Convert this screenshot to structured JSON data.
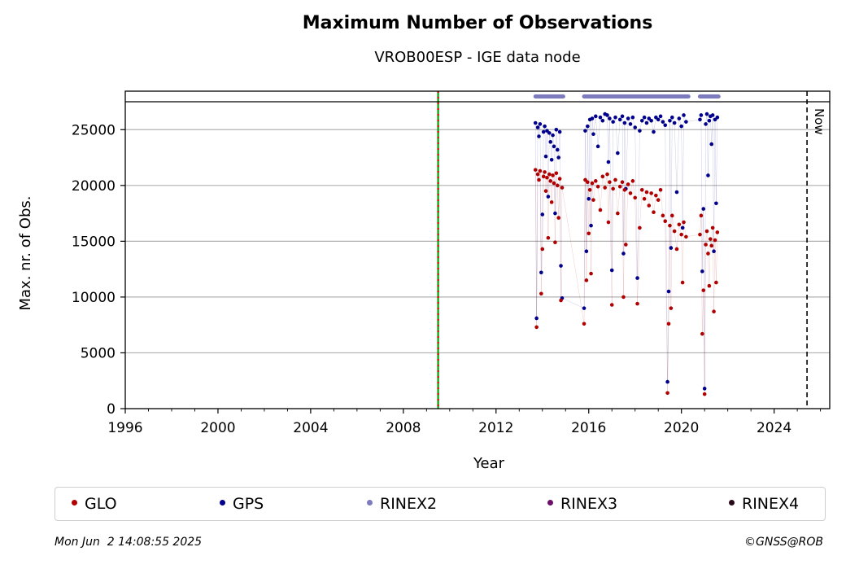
{
  "chart_data": {
    "type": "scatter",
    "title": "Maximum Number of Observations",
    "subtitle": "VROB00ESP - IGE data node",
    "xlabel": "Year",
    "ylabel": "Max. nr. of Obs.",
    "xlim": [
      1996,
      2026.4
    ],
    "ylim": [
      0,
      27500
    ],
    "x_ticks": [
      "1996",
      "2000",
      "2004",
      "2008",
      "2012",
      "2016",
      "2020",
      "2024"
    ],
    "y_ticks": [
      "0",
      "5000",
      "10000",
      "15000",
      "20000",
      "25000"
    ],
    "grid": "horizontal",
    "vertical_markers": [
      {
        "x": 2009.5,
        "style": "green-red dashed",
        "label": ""
      },
      {
        "x": 2025.42,
        "style": "black dashed",
        "label": "Now"
      }
    ],
    "rinex_bands": [
      {
        "name": "RINEX2",
        "segments": [
          [
            2013.7,
            2014.9
          ],
          [
            2015.8,
            2020.3
          ],
          [
            2020.8,
            2021.6
          ]
        ]
      }
    ],
    "series": [
      {
        "name": "GLO",
        "color": "#b00000",
        "points": [
          [
            2013.7,
            21400
          ],
          [
            2013.75,
            7300
          ],
          [
            2013.8,
            21000
          ],
          [
            2013.85,
            20500
          ],
          [
            2013.9,
            21300
          ],
          [
            2013.95,
            10300
          ],
          [
            2014.0,
            14300
          ],
          [
            2014.05,
            20800
          ],
          [
            2014.1,
            21200
          ],
          [
            2014.15,
            19500
          ],
          [
            2014.2,
            20700
          ],
          [
            2014.25,
            15300
          ],
          [
            2014.3,
            21000
          ],
          [
            2014.35,
            20400
          ],
          [
            2014.4,
            18500
          ],
          [
            2014.45,
            20900
          ],
          [
            2014.5,
            20200
          ],
          [
            2014.55,
            14900
          ],
          [
            2014.6,
            21100
          ],
          [
            2014.65,
            20000
          ],
          [
            2014.7,
            17100
          ],
          [
            2014.75,
            20600
          ],
          [
            2014.8,
            9700
          ],
          [
            2014.85,
            19800
          ],
          [
            2015.8,
            7600
          ],
          [
            2015.85,
            20500
          ],
          [
            2015.9,
            11500
          ],
          [
            2015.95,
            20300
          ],
          [
            2016.0,
            15700
          ],
          [
            2016.05,
            19600
          ],
          [
            2016.1,
            12100
          ],
          [
            2016.15,
            20200
          ],
          [
            2016.2,
            18700
          ],
          [
            2016.3,
            20400
          ],
          [
            2016.4,
            19900
          ],
          [
            2016.5,
            17800
          ],
          [
            2016.6,
            20800
          ],
          [
            2016.7,
            19800
          ],
          [
            2016.8,
            21000
          ],
          [
            2016.85,
            16700
          ],
          [
            2016.9,
            20300
          ],
          [
            2017.0,
            9300
          ],
          [
            2017.05,
            19700
          ],
          [
            2017.15,
            20500
          ],
          [
            2017.25,
            17500
          ],
          [
            2017.35,
            19900
          ],
          [
            2017.45,
            20300
          ],
          [
            2017.5,
            10000
          ],
          [
            2017.55,
            19600
          ],
          [
            2017.6,
            14700
          ],
          [
            2017.7,
            20100
          ],
          [
            2017.8,
            19300
          ],
          [
            2017.9,
            20400
          ],
          [
            2018.0,
            18900
          ],
          [
            2018.1,
            9400
          ],
          [
            2018.2,
            16200
          ],
          [
            2018.3,
            19600
          ],
          [
            2018.4,
            18800
          ],
          [
            2018.5,
            19400
          ],
          [
            2018.6,
            18200
          ],
          [
            2018.7,
            19300
          ],
          [
            2018.8,
            17600
          ],
          [
            2018.9,
            19100
          ],
          [
            2019.0,
            18700
          ],
          [
            2019.1,
            19600
          ],
          [
            2019.2,
            17300
          ],
          [
            2019.3,
            16800
          ],
          [
            2019.4,
            1400
          ],
          [
            2019.45,
            7600
          ],
          [
            2019.5,
            16400
          ],
          [
            2019.55,
            9000
          ],
          [
            2019.6,
            17300
          ],
          [
            2019.7,
            15900
          ],
          [
            2019.8,
            14300
          ],
          [
            2019.9,
            16500
          ],
          [
            2020.0,
            15600
          ],
          [
            2020.05,
            11300
          ],
          [
            2020.1,
            16700
          ],
          [
            2020.2,
            15400
          ],
          [
            2020.8,
            15600
          ],
          [
            2020.85,
            17300
          ],
          [
            2020.9,
            6700
          ],
          [
            2020.95,
            10600
          ],
          [
            2021.0,
            1300
          ],
          [
            2021.05,
            14700
          ],
          [
            2021.1,
            15900
          ],
          [
            2021.15,
            13900
          ],
          [
            2021.2,
            11000
          ],
          [
            2021.25,
            15200
          ],
          [
            2021.3,
            14600
          ],
          [
            2021.35,
            16200
          ],
          [
            2021.4,
            8700
          ],
          [
            2021.45,
            15100
          ],
          [
            2021.5,
            11300
          ],
          [
            2021.55,
            15800
          ]
        ]
      },
      {
        "name": "GPS",
        "color": "#00008b",
        "points": [
          [
            2013.7,
            25600
          ],
          [
            2013.75,
            8100
          ],
          [
            2013.8,
            25200
          ],
          [
            2013.85,
            24400
          ],
          [
            2013.9,
            25500
          ],
          [
            2013.95,
            12200
          ],
          [
            2014.0,
            17400
          ],
          [
            2014.05,
            24800
          ],
          [
            2014.1,
            25300
          ],
          [
            2014.15,
            22600
          ],
          [
            2014.2,
            24900
          ],
          [
            2014.25,
            19000
          ],
          [
            2014.3,
            24700
          ],
          [
            2014.35,
            23900
          ],
          [
            2014.4,
            22300
          ],
          [
            2014.45,
            24500
          ],
          [
            2014.5,
            23500
          ],
          [
            2014.55,
            17500
          ],
          [
            2014.6,
            25000
          ],
          [
            2014.65,
            23200
          ],
          [
            2014.7,
            22500
          ],
          [
            2014.75,
            24800
          ],
          [
            2014.8,
            12800
          ],
          [
            2014.85,
            9900
          ],
          [
            2015.8,
            9000
          ],
          [
            2015.85,
            24900
          ],
          [
            2015.9,
            14100
          ],
          [
            2015.95,
            25300
          ],
          [
            2016.0,
            18800
          ],
          [
            2016.05,
            25900
          ],
          [
            2016.1,
            16400
          ],
          [
            2016.15,
            26000
          ],
          [
            2016.2,
            24600
          ],
          [
            2016.3,
            26200
          ],
          [
            2016.4,
            23500
          ],
          [
            2016.5,
            26100
          ],
          [
            2016.6,
            25800
          ],
          [
            2016.7,
            26400
          ],
          [
            2016.8,
            26300
          ],
          [
            2016.85,
            22100
          ],
          [
            2016.9,
            26000
          ],
          [
            2017.0,
            12400
          ],
          [
            2017.05,
            25700
          ],
          [
            2017.15,
            26100
          ],
          [
            2017.25,
            22900
          ],
          [
            2017.35,
            25900
          ],
          [
            2017.45,
            26200
          ],
          [
            2017.5,
            13900
          ],
          [
            2017.55,
            25600
          ],
          [
            2017.6,
            19700
          ],
          [
            2017.7,
            26000
          ],
          [
            2017.8,
            25500
          ],
          [
            2017.9,
            26100
          ],
          [
            2018.0,
            25200
          ],
          [
            2018.1,
            11700
          ],
          [
            2018.2,
            24900
          ],
          [
            2018.3,
            25800
          ],
          [
            2018.4,
            26100
          ],
          [
            2018.5,
            25600
          ],
          [
            2018.6,
            26000
          ],
          [
            2018.7,
            25800
          ],
          [
            2018.8,
            24800
          ],
          [
            2018.9,
            26100
          ],
          [
            2019.0,
            25900
          ],
          [
            2019.1,
            26200
          ],
          [
            2019.2,
            25700
          ],
          [
            2019.3,
            25400
          ],
          [
            2019.4,
            2400
          ],
          [
            2019.45,
            10500
          ],
          [
            2019.5,
            25800
          ],
          [
            2019.55,
            14400
          ],
          [
            2019.6,
            26100
          ],
          [
            2019.7,
            25600
          ],
          [
            2019.8,
            19400
          ],
          [
            2019.9,
            26000
          ],
          [
            2020.0,
            25300
          ],
          [
            2020.05,
            16200
          ],
          [
            2020.1,
            26300
          ],
          [
            2020.2,
            25700
          ],
          [
            2020.8,
            25900
          ],
          [
            2020.85,
            26300
          ],
          [
            2020.9,
            12300
          ],
          [
            2020.95,
            17900
          ],
          [
            2021.0,
            1800
          ],
          [
            2021.05,
            25500
          ],
          [
            2021.1,
            26400
          ],
          [
            2021.15,
            20900
          ],
          [
            2021.2,
            25800
          ],
          [
            2021.25,
            26200
          ],
          [
            2021.3,
            23700
          ],
          [
            2021.35,
            26300
          ],
          [
            2021.4,
            14100
          ],
          [
            2021.45,
            25900
          ],
          [
            2021.5,
            18400
          ],
          [
            2021.55,
            26100
          ]
        ]
      }
    ]
  },
  "legend": [
    {
      "label": "GLO",
      "color": "#b00000"
    },
    {
      "label": "GPS",
      "color": "#00008b"
    },
    {
      "label": "RINEX2",
      "color": "#7b7bbd"
    },
    {
      "label": "RINEX3",
      "color": "#6a0f6a"
    },
    {
      "label": "RINEX4",
      "color": "#2a0a1a"
    }
  ],
  "footer": {
    "timestamp": "Mon Jun  2 14:08:55 2025",
    "credit": "©GNSS@ROB"
  }
}
